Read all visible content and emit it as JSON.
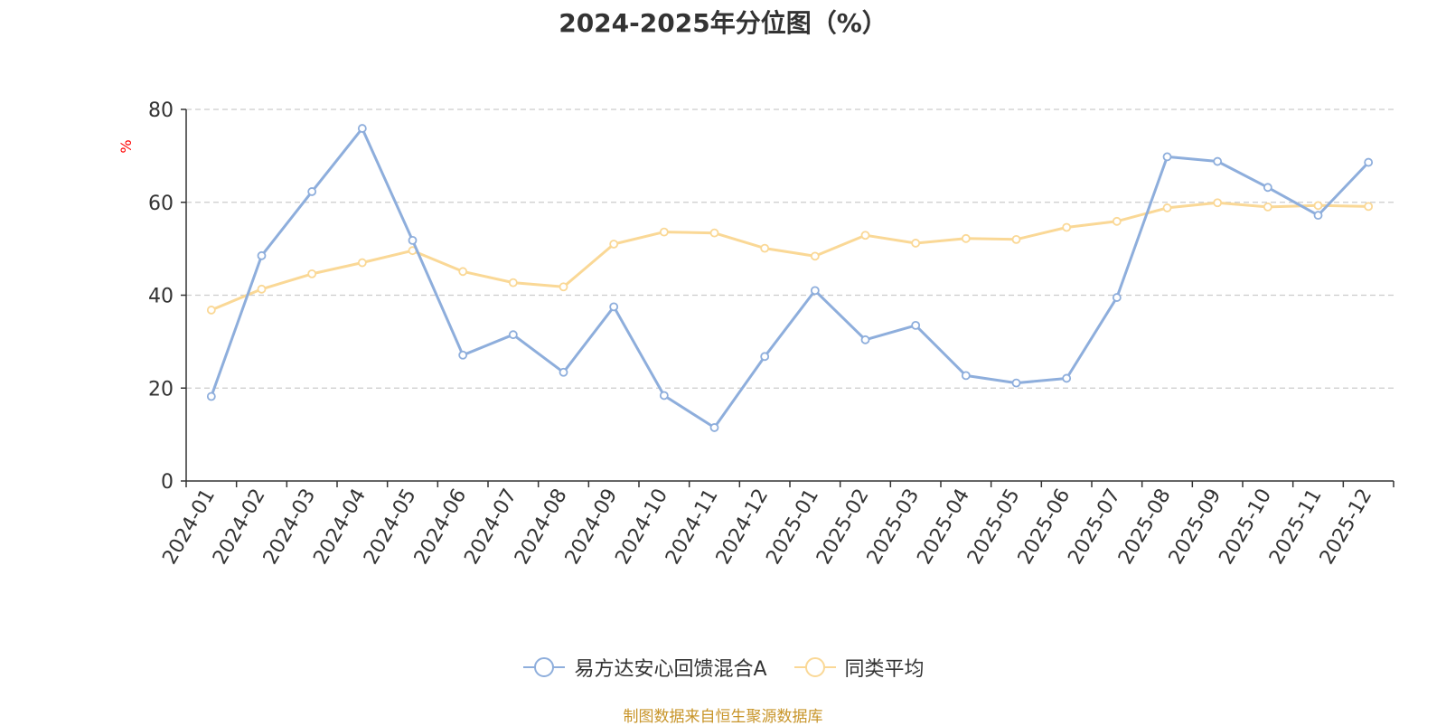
{
  "chart_data": {
    "type": "line",
    "title": "2024-2025年分位图（%）",
    "ylabel": "%",
    "ylim": [
      0,
      80
    ],
    "yticks": [
      0,
      20,
      40,
      60,
      80
    ],
    "grid": true,
    "legend_position": "bottom",
    "categories": [
      "2024-01",
      "2024-02",
      "2024-03",
      "2024-04",
      "2024-05",
      "2024-06",
      "2024-07",
      "2024-08",
      "2024-09",
      "2024-10",
      "2024-11",
      "2024-12",
      "2025-01",
      "2025-02",
      "2025-03",
      "2025-04",
      "2025-05",
      "2025-06",
      "2025-07",
      "2025-08",
      "2025-09",
      "2025-10",
      "2025-11",
      "2025-12"
    ],
    "series": [
      {
        "name": "易方达安心回馈混合A",
        "color": "#8eaedc",
        "values": [
          18.2,
          48.5,
          62.3,
          75.9,
          51.8,
          27.1,
          31.5,
          23.4,
          37.5,
          18.4,
          11.5,
          26.8,
          41.0,
          30.4,
          33.5,
          22.7,
          21.1,
          22.1,
          39.5,
          69.8,
          68.8,
          63.2,
          57.2,
          68.6
        ]
      },
      {
        "name": "同类平均",
        "color": "#fad896",
        "values": [
          36.8,
          41.3,
          44.6,
          47.0,
          49.6,
          45.1,
          42.7,
          41.8,
          51.0,
          53.6,
          53.4,
          50.1,
          48.4,
          52.9,
          51.2,
          52.2,
          52.0,
          54.6,
          55.9,
          58.8,
          59.9,
          59.0,
          59.3,
          59.1
        ]
      }
    ]
  },
  "source_text": "制图数据来自恒生聚源数据库"
}
